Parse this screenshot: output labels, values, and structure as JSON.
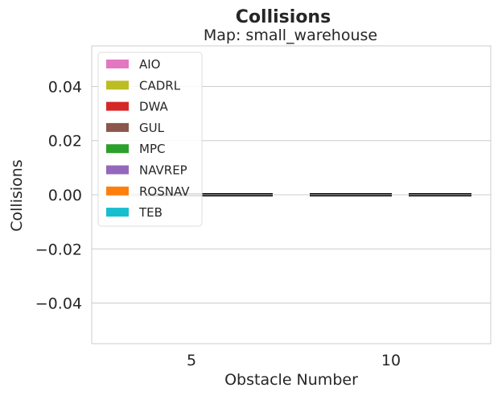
{
  "chart_data": {
    "type": "bar",
    "title": "Collisions",
    "subtitle": "Map: small_warehouse",
    "xlabel": "Obstacle Number",
    "ylabel": "Collisions",
    "categories": [
      "5",
      "10"
    ],
    "ylim": [
      -0.055,
      0.055
    ],
    "yticks": [
      -0.04,
      -0.02,
      0.0,
      0.02,
      0.04
    ],
    "ytick_labels": [
      "−0.04",
      "−0.02",
      "0.00",
      "0.02",
      "0.04"
    ],
    "grid": true,
    "legend_position": "top-left",
    "series": [
      {
        "name": "AIO",
        "color": "#e377c2",
        "values": [
          0,
          0
        ]
      },
      {
        "name": "CADRL",
        "color": "#bcbd22",
        "values": [
          0,
          0
        ]
      },
      {
        "name": "DWA",
        "color": "#d62728",
        "values": [
          0,
          0
        ]
      },
      {
        "name": "GUL",
        "color": "#8c564b",
        "values": [
          0,
          0
        ]
      },
      {
        "name": "MPC",
        "color": "#2ca02c",
        "values": [
          0,
          0
        ]
      },
      {
        "name": "NAVREP",
        "color": "#9467bd",
        "values": [
          0,
          0
        ]
      },
      {
        "name": "ROSNAV",
        "color": "#ff7f0e",
        "values": [
          0,
          0
        ]
      },
      {
        "name": "TEB",
        "color": "#17becf",
        "values": [
          0,
          0
        ]
      }
    ],
    "error_bar_color": "#000000"
  }
}
